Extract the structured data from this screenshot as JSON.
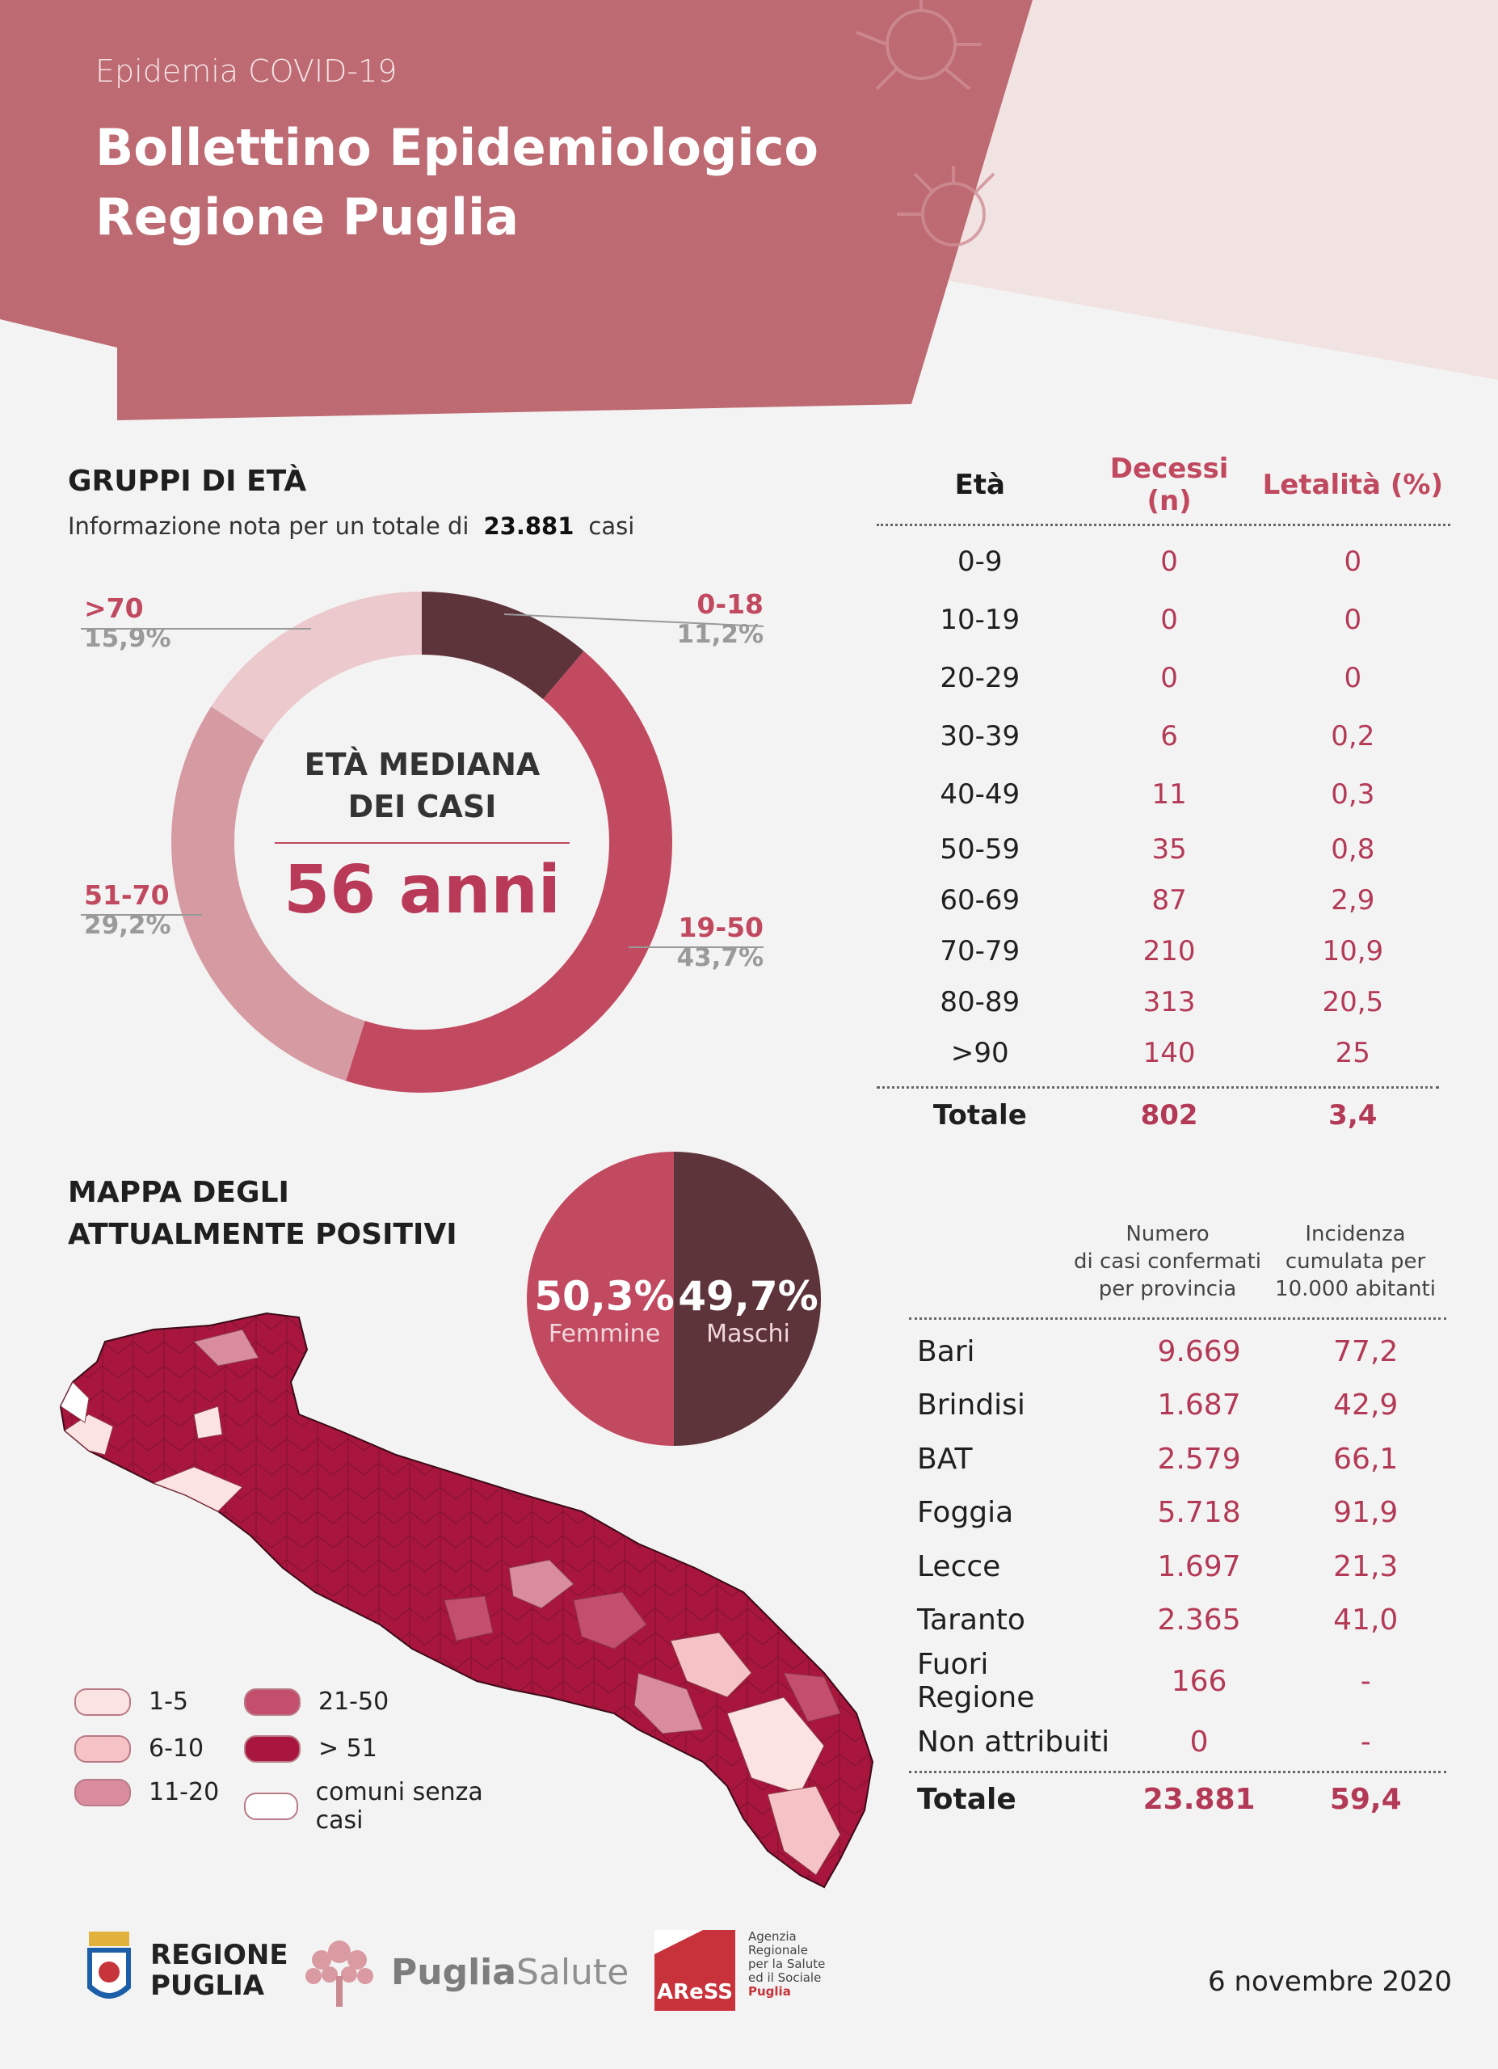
{
  "header": {
    "kicker": "Epidemia COVID-19",
    "title_line1": "Bollettino Epidemiologico",
    "title_line2": "Regione Puglia"
  },
  "age_groups": {
    "title": "GRUPPI DI ETÀ",
    "note_prefix": "Informazione nota per un totale di",
    "note_total": "23.881",
    "note_suffix": "casi",
    "center_label_l1": "ETÀ MEDIANA",
    "center_label_l2": "DEI CASI",
    "center_value": "56 anni",
    "segments": [
      {
        "label": "0-18",
        "pct_text": "11,2%",
        "value": 11.2,
        "color": "#5e343b"
      },
      {
        "label": "19-50",
        "pct_text": "43,7%",
        "value": 43.7,
        "color": "#c14a61"
      },
      {
        "label": "51-70",
        "pct_text": "29,2%",
        "value": 29.2,
        "color": "#d69ba2"
      },
      {
        "label": ">70",
        "pct_text": "15,9%",
        "value": 15.9,
        "color": "#ebc9cc"
      }
    ]
  },
  "deaths_table": {
    "headers": [
      "Età",
      "Decessi (n)",
      "Letalità (%)"
    ],
    "rows": [
      [
        "0-9",
        "0",
        "0"
      ],
      [
        "10-19",
        "0",
        "0"
      ],
      [
        "20-29",
        "0",
        "0"
      ],
      [
        "30-39",
        "6",
        "0,2"
      ],
      [
        "40-49",
        "11",
        "0,3"
      ],
      [
        "50-59",
        "35",
        "0,8"
      ],
      [
        "60-69",
        "87",
        "2,9"
      ],
      [
        "70-79",
        "210",
        "10,9"
      ],
      [
        "80-89",
        "313",
        "20,5"
      ],
      [
        ">90",
        "140",
        "25"
      ]
    ],
    "total": [
      "Totale",
      "802",
      "3,4"
    ]
  },
  "map_section": {
    "title_l1": "MAPPA DEGLI",
    "title_l2": "ATTUALMENTE POSITIVI",
    "legend": [
      {
        "label": "1-5",
        "color": "#fbe3e1"
      },
      {
        "label": "6-10",
        "color": "#f5c2c6"
      },
      {
        "label": "11-20",
        "color": "#d98c9e"
      },
      {
        "label": "21-50",
        "color": "#c44f6c"
      },
      {
        "label": "> 51",
        "color": "#a8163d"
      },
      {
        "label": "comuni senza casi",
        "color": "#ffffff"
      }
    ]
  },
  "sex_pie": {
    "female_pct": "50,3%",
    "female_label": "Femmine",
    "female_value": 50.3,
    "male_pct": "49,7%",
    "male_label": "Maschi",
    "male_value": 49.7
  },
  "province_table": {
    "header_col2": [
      "Numero",
      "di casi confermati",
      "per provincia"
    ],
    "header_col3": [
      "Incidenza",
      "cumulata per",
      "10.000 abitanti"
    ],
    "rows": [
      [
        "Bari",
        "9.669",
        "77,2"
      ],
      [
        "Brindisi",
        "1.687",
        "42,9"
      ],
      [
        "BAT",
        "2.579",
        "66,1"
      ],
      [
        "Foggia",
        "5.718",
        "91,9"
      ],
      [
        "Lecce",
        "1.697",
        "21,3"
      ],
      [
        "Taranto",
        "2.365",
        "41,0"
      ],
      [
        "Fuori Regione",
        "166",
        "-"
      ],
      [
        "Non attribuiti",
        "0",
        "-"
      ]
    ],
    "total": [
      "Totale",
      "23.881",
      "59,4"
    ]
  },
  "footer": {
    "logo1_l1": "REGIONE",
    "logo1_l2": "PUGLIA",
    "logo2_a": "Puglia",
    "logo2_b": "Salute",
    "logo3_mark": "AReSS",
    "logo3_text": [
      "Agenzia",
      "Regionale",
      "per la Salute",
      "ed il Sociale",
      "Puglia"
    ],
    "date": "6 novembre 2020"
  }
}
